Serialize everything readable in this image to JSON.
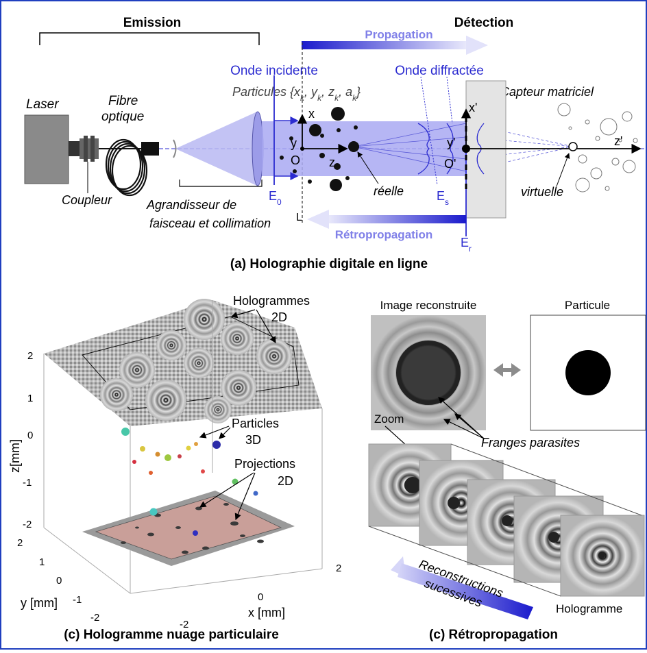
{
  "panel_a": {
    "emission_title": "Emission",
    "detection_title": "Détection",
    "propagation": "Propagation",
    "retropropagation": "Rétropropagation",
    "onde_incidente": "Onde incidente",
    "onde_diffractee": "Onde diffractée",
    "particules": "Particules {x",
    "particules_k1": "k",
    "particules_y": ", y",
    "particules_k2": "k",
    "particules_z": ", z",
    "particules_k3": "k",
    "particules_a": ", a",
    "particules_k4": "k",
    "particules_end": "}",
    "capteur": "Capteur matriciel",
    "laser": "Laser",
    "fibre_line1": "Fibre",
    "fibre_line2": "optique",
    "coupleur": "Coupleur",
    "agrandisseur_line1": "Agrandisseur de",
    "agrandisseur_line2": "faisceau et collimation",
    "axis_x": "x",
    "axis_y": "y",
    "axis_z": "z",
    "origin_o": "O",
    "axis_xp": "x'",
    "axis_yp": "y'",
    "axis_zp": "z'",
    "origin_op": "O'",
    "reelle": "réelle",
    "virtuelle": "virtuelle",
    "e0": "E",
    "e0_sub": "0",
    "es": "E",
    "es_sub": "s",
    "er": "E",
    "er_sub": "r",
    "l_label": "L",
    "caption": "(a) Holographie digitale en ligne"
  },
  "panel_c1": {
    "hologrammes_line1": "Hologrammes",
    "hologrammes_line2": "2D",
    "particles_line1": "Particles",
    "particles_line2": "3D",
    "projections_line1": "Projections",
    "projections_line2": "2D",
    "z_axis_label": "z[mm]",
    "y_axis_label": "y [mm]",
    "x_axis_label": "x [mm]",
    "z_ticks": [
      "2",
      "1",
      "0",
      "-1",
      "-2"
    ],
    "y_ticks": [
      "2",
      "1",
      "0",
      "-1",
      "-2"
    ],
    "x_ticks": [
      "-2",
      "0",
      "2"
    ],
    "caption": "(c) Hologramme nuage particulaire",
    "colors": {
      "particle_plane": "#c99f99",
      "frame": "#9a9a9a"
    }
  },
  "panel_c2": {
    "image_reconstruite": "Image reconstruite",
    "particule": "Particule",
    "zoom": "Zoom",
    "franges": "Franges parasites",
    "reconstructions_line1": "Reconstructions",
    "reconstructions_line2": "sucessives",
    "hologramme": "Hologramme",
    "caption": "(c) Rétropropagation"
  },
  "colors": {
    "accent_blue": "#2b2bd0",
    "beam": "#a9a9f2",
    "frame_border": "#1f3fbf"
  }
}
